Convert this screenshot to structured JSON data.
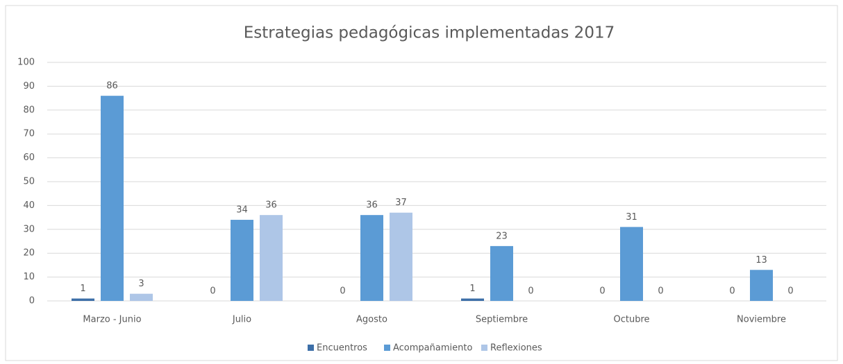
{
  "chart_data": {
    "type": "bar",
    "title": "Estrategias pedagógicas implementadas 2017",
    "categories": [
      "Marzo - Junio",
      "Julio",
      "Agosto",
      "Septiembre",
      "Octubre",
      "Noviembre"
    ],
    "series": [
      {
        "name": "Encuentros",
        "color": "#3d6fa8",
        "values": [
          1,
          0,
          0,
          1,
          0,
          0
        ]
      },
      {
        "name": "Acompañamiento",
        "color": "#5b9bd5",
        "values": [
          86,
          34,
          36,
          23,
          31,
          13
        ]
      },
      {
        "name": "Reflexiones",
        "color": "#aec6e7",
        "values": [
          3,
          36,
          37,
          0,
          0,
          0
        ]
      }
    ],
    "ylim": [
      0,
      100
    ],
    "yticks": [
      0,
      10,
      20,
      30,
      40,
      50,
      60,
      70,
      80,
      90,
      100
    ],
    "grid": true,
    "legend": "bottom"
  }
}
